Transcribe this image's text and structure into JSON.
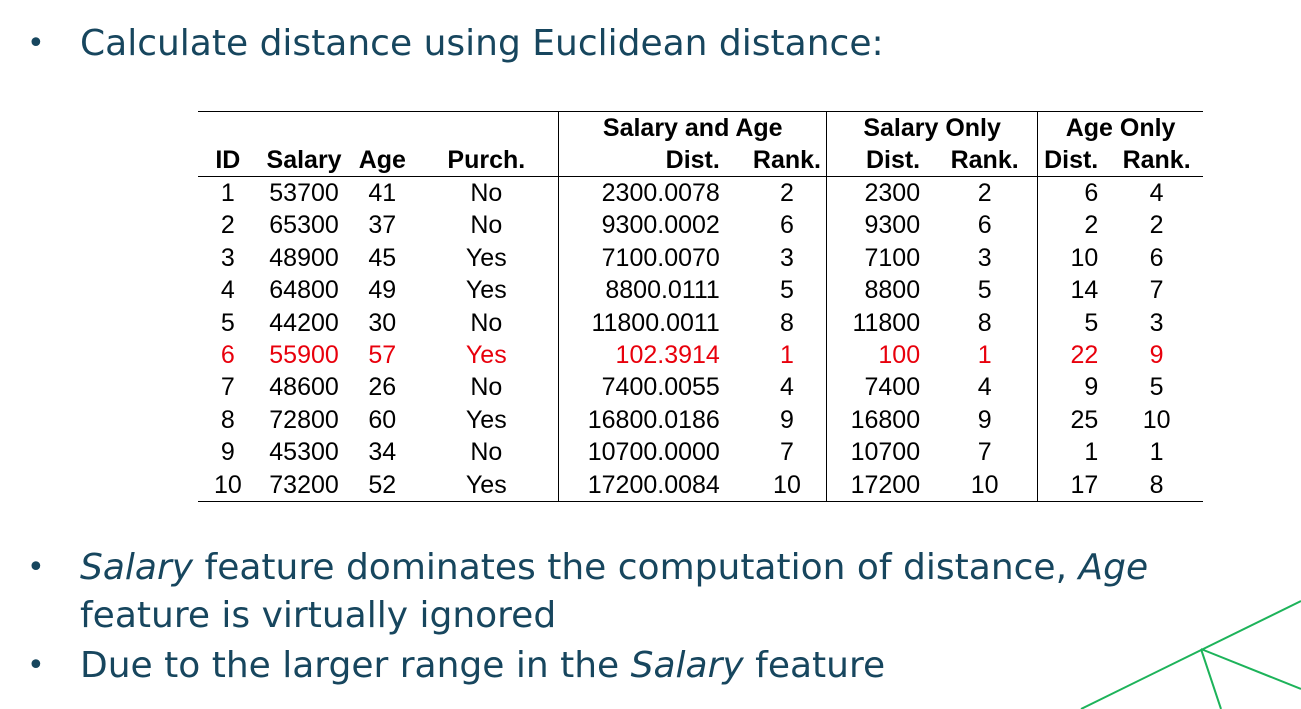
{
  "heading": "Calculate distance using Euclidean distance:",
  "bullet_symbol": "•",
  "table": {
    "group_headers": [
      "Salary and Age",
      "Salary Only",
      "Age Only"
    ],
    "columns": [
      "ID",
      "Salary",
      "Age",
      "Purch.",
      "Dist.",
      "Rank.",
      "Dist.",
      "Rank.",
      "Dist.",
      "Rank."
    ],
    "rows": [
      [
        "1",
        "53700",
        "41",
        "No",
        "2300.0078",
        "2",
        "2300",
        "2",
        "6",
        "4"
      ],
      [
        "2",
        "65300",
        "37",
        "No",
        "9300.0002",
        "6",
        "9300",
        "6",
        "2",
        "2"
      ],
      [
        "3",
        "48900",
        "45",
        "Yes",
        "7100.0070",
        "3",
        "7100",
        "3",
        "10",
        "6"
      ],
      [
        "4",
        "64800",
        "49",
        "Yes",
        "8800.0111",
        "5",
        "8800",
        "5",
        "14",
        "7"
      ],
      [
        "5",
        "44200",
        "30",
        "No",
        "11800.0011",
        "8",
        "11800",
        "8",
        "5",
        "3"
      ],
      [
        "6",
        "55900",
        "57",
        "Yes",
        "102.3914",
        "1",
        "100",
        "1",
        "22",
        "9"
      ],
      [
        "7",
        "48600",
        "26",
        "No",
        "7400.0055",
        "4",
        "7400",
        "4",
        "9",
        "5"
      ],
      [
        "8",
        "72800",
        "60",
        "Yes",
        "16800.0186",
        "9",
        "16800",
        "9",
        "25",
        "10"
      ],
      [
        "9",
        "45300",
        "34",
        "No",
        "10700.0000",
        "7",
        "10700",
        "7",
        "1",
        "1"
      ],
      [
        "10",
        "73200",
        "52",
        "Yes",
        "17200.0084",
        "10",
        "17200",
        "10",
        "17",
        "8"
      ]
    ],
    "highlight_row_index": 5,
    "highlight_color": "#e8000c"
  },
  "bullets": [
    {
      "parts": [
        {
          "text": "Salary",
          "italic": true
        },
        {
          "text": " feature dominates the computation of distance, ",
          "italic": false
        },
        {
          "text": "Age",
          "italic": true
        },
        {
          "text": " feature is virtually ignored",
          "italic": false
        }
      ]
    },
    {
      "parts": [
        {
          "text": "Due to the larger range in the ",
          "italic": false
        },
        {
          "text": "Salary",
          "italic": true
        },
        {
          "text": " feature",
          "italic": false
        }
      ]
    }
  ],
  "colors": {
    "text": "#17465e",
    "accent_line": "#1db35a"
  }
}
